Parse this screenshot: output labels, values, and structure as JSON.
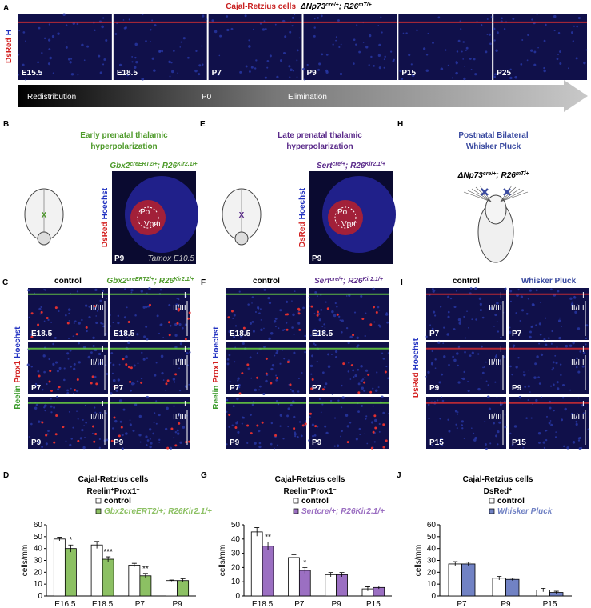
{
  "panels": {
    "A": {
      "letter": "A",
      "title": "Cajal-Retzius cells",
      "genotype": [
        "ΔNp73",
        "cre/+",
        "; R26",
        "mT/+"
      ],
      "stain": [
        "DsRed",
        "H"
      ],
      "stain_colors": [
        "#d32020",
        "#2030c0"
      ],
      "images": [
        "E15.5",
        "E18.5",
        "P7",
        "P9",
        "P15",
        "P25"
      ],
      "timeline": [
        "Redistribution",
        "P0",
        "Elimination"
      ]
    },
    "B": {
      "letter": "B",
      "title": [
        "Early prenatal thalamic",
        "hyperpolarization"
      ],
      "title_color": "#4e9a2a",
      "genotype": [
        "Gbx2",
        "creERT2/+",
        "; R26",
        "Kir2.1/+"
      ],
      "stain": [
        "DsRed",
        "Hoechst"
      ],
      "stain_colors": [
        "#d32020",
        "#2030c0"
      ],
      "age": "P9",
      "note": "Tamox E10.5",
      "regions": [
        "Po",
        "Vpm"
      ],
      "mark": "X"
    },
    "E": {
      "letter": "E",
      "title": [
        "Late prenatal thalamic",
        "hyperpolarization"
      ],
      "title_color": "#5a2a8a",
      "genotype": [
        "Sert",
        "cre/+",
        "; R26",
        "Kir2.1/+"
      ],
      "stain": [
        "DsRed",
        "Hoechst"
      ],
      "stain_colors": [
        "#d32020",
        "#2030c0"
      ],
      "age": "P9",
      "regions": [
        "Po",
        "Vpm"
      ],
      "mark": "X"
    },
    "H": {
      "letter": "H",
      "title": [
        "Postnatal Bilateral",
        "Whisker Pluck"
      ],
      "title_color": "#3a4aa0",
      "genotype": [
        "ΔNp73",
        "cre/+",
        "; R26",
        "mT/+"
      ]
    },
    "C": {
      "letter": "C",
      "columns": [
        "control",
        [
          "Gbx2",
          "creERT2/+",
          "; R26",
          "Kir2.1/+"
        ]
      ],
      "column_color": "#4e9a2a",
      "rows": [
        "E18.5",
        "P7",
        "P9"
      ],
      "stain": [
        "Reelin",
        "Prox1",
        "Hoechst"
      ],
      "stain_colors": [
        "#3a9a2a",
        "#d32020",
        "#2030c0"
      ],
      "layer_labels": [
        "I",
        "II/III"
      ]
    },
    "F": {
      "letter": "F",
      "columns": [
        "control",
        [
          "Sert",
          "cre/+",
          "; R26",
          "Kir2.1/+"
        ]
      ],
      "column_color": "#5a2a8a",
      "rows": [
        "E18.5",
        "P7",
        "P9"
      ],
      "stain": [
        "Reelin",
        "Prox1",
        "Hoechst"
      ],
      "stain_colors": [
        "#3a9a2a",
        "#d32020",
        "#2030c0"
      ]
    },
    "I": {
      "letter": "I",
      "columns": [
        "control",
        "Whisker Pluck"
      ],
      "column_color": "#3a4aa0",
      "rows": [
        "P7",
        "P9",
        "P15"
      ],
      "stain": [
        "DsRed",
        "Hoechst"
      ],
      "stain_colors": [
        "#d32020",
        "#2030c0"
      ],
      "layer_labels": [
        "I",
        "II/III"
      ]
    }
  },
  "chart_data": [
    {
      "type": "bar",
      "letter": "D",
      "title": "Cajal-Retzius cells",
      "subtitle": [
        "Reelin",
        "+",
        "Prox1",
        "−"
      ],
      "y_label": "cells/mm",
      "categories": [
        "E16.5",
        "E18.5",
        "P7",
        "P9"
      ],
      "ylim": [
        0,
        60
      ],
      "yticks": [
        0,
        10,
        20,
        30,
        40,
        50,
        60
      ],
      "series": [
        {
          "name": "control",
          "color": "#ffffff",
          "values": [
            48,
            43,
            26,
            13
          ],
          "errors": [
            1.5,
            3,
            1.5,
            0.5
          ]
        },
        {
          "name": "Gbx2creERT2/+; R26Kir2.1/+",
          "color": "#8cc063",
          "values": [
            40,
            31,
            17,
            13
          ],
          "errors": [
            3,
            2,
            2,
            1.5
          ],
          "annotations": [
            "*",
            "***",
            "**",
            null
          ]
        }
      ]
    },
    {
      "type": "bar",
      "letter": "G",
      "title": "Cajal-Retzius cells",
      "subtitle": [
        "Reelin",
        "+",
        "Prox1",
        "−"
      ],
      "y_label": "cells/mm",
      "categories": [
        "E18.5",
        "P7",
        "P9",
        "P15"
      ],
      "ylim": [
        0,
        50
      ],
      "yticks": [
        0,
        10,
        20,
        30,
        40,
        50
      ],
      "series": [
        {
          "name": "control",
          "color": "#ffffff",
          "values": [
            45,
            27,
            15,
            5
          ],
          "errors": [
            3,
            2,
            1.5,
            1.5
          ]
        },
        {
          "name": "Sertcre/+; R26Kir2.1/+",
          "color": "#9b6fc2",
          "values": [
            35,
            18,
            15,
            6
          ],
          "errors": [
            3,
            2,
            1.5,
            1
          ],
          "annotations": [
            "**",
            "*",
            null,
            null
          ]
        }
      ]
    },
    {
      "type": "bar",
      "letter": "J",
      "title": "Cajal-Retzius cells",
      "subtitle": [
        "DsRed",
        "+"
      ],
      "y_label": "cells/mm",
      "categories": [
        "P7",
        "P9",
        "P15"
      ],
      "ylim": [
        0,
        60
      ],
      "yticks": [
        0,
        10,
        20,
        30,
        40,
        50,
        60
      ],
      "series": [
        {
          "name": "control",
          "color": "#ffffff",
          "values": [
            27,
            15,
            5
          ],
          "errors": [
            2,
            1.5,
            1.5
          ]
        },
        {
          "name": "Whisker Pluck",
          "color": "#7182c4",
          "values": [
            27,
            14,
            3
          ],
          "errors": [
            1.5,
            1,
            1
          ]
        }
      ]
    }
  ]
}
